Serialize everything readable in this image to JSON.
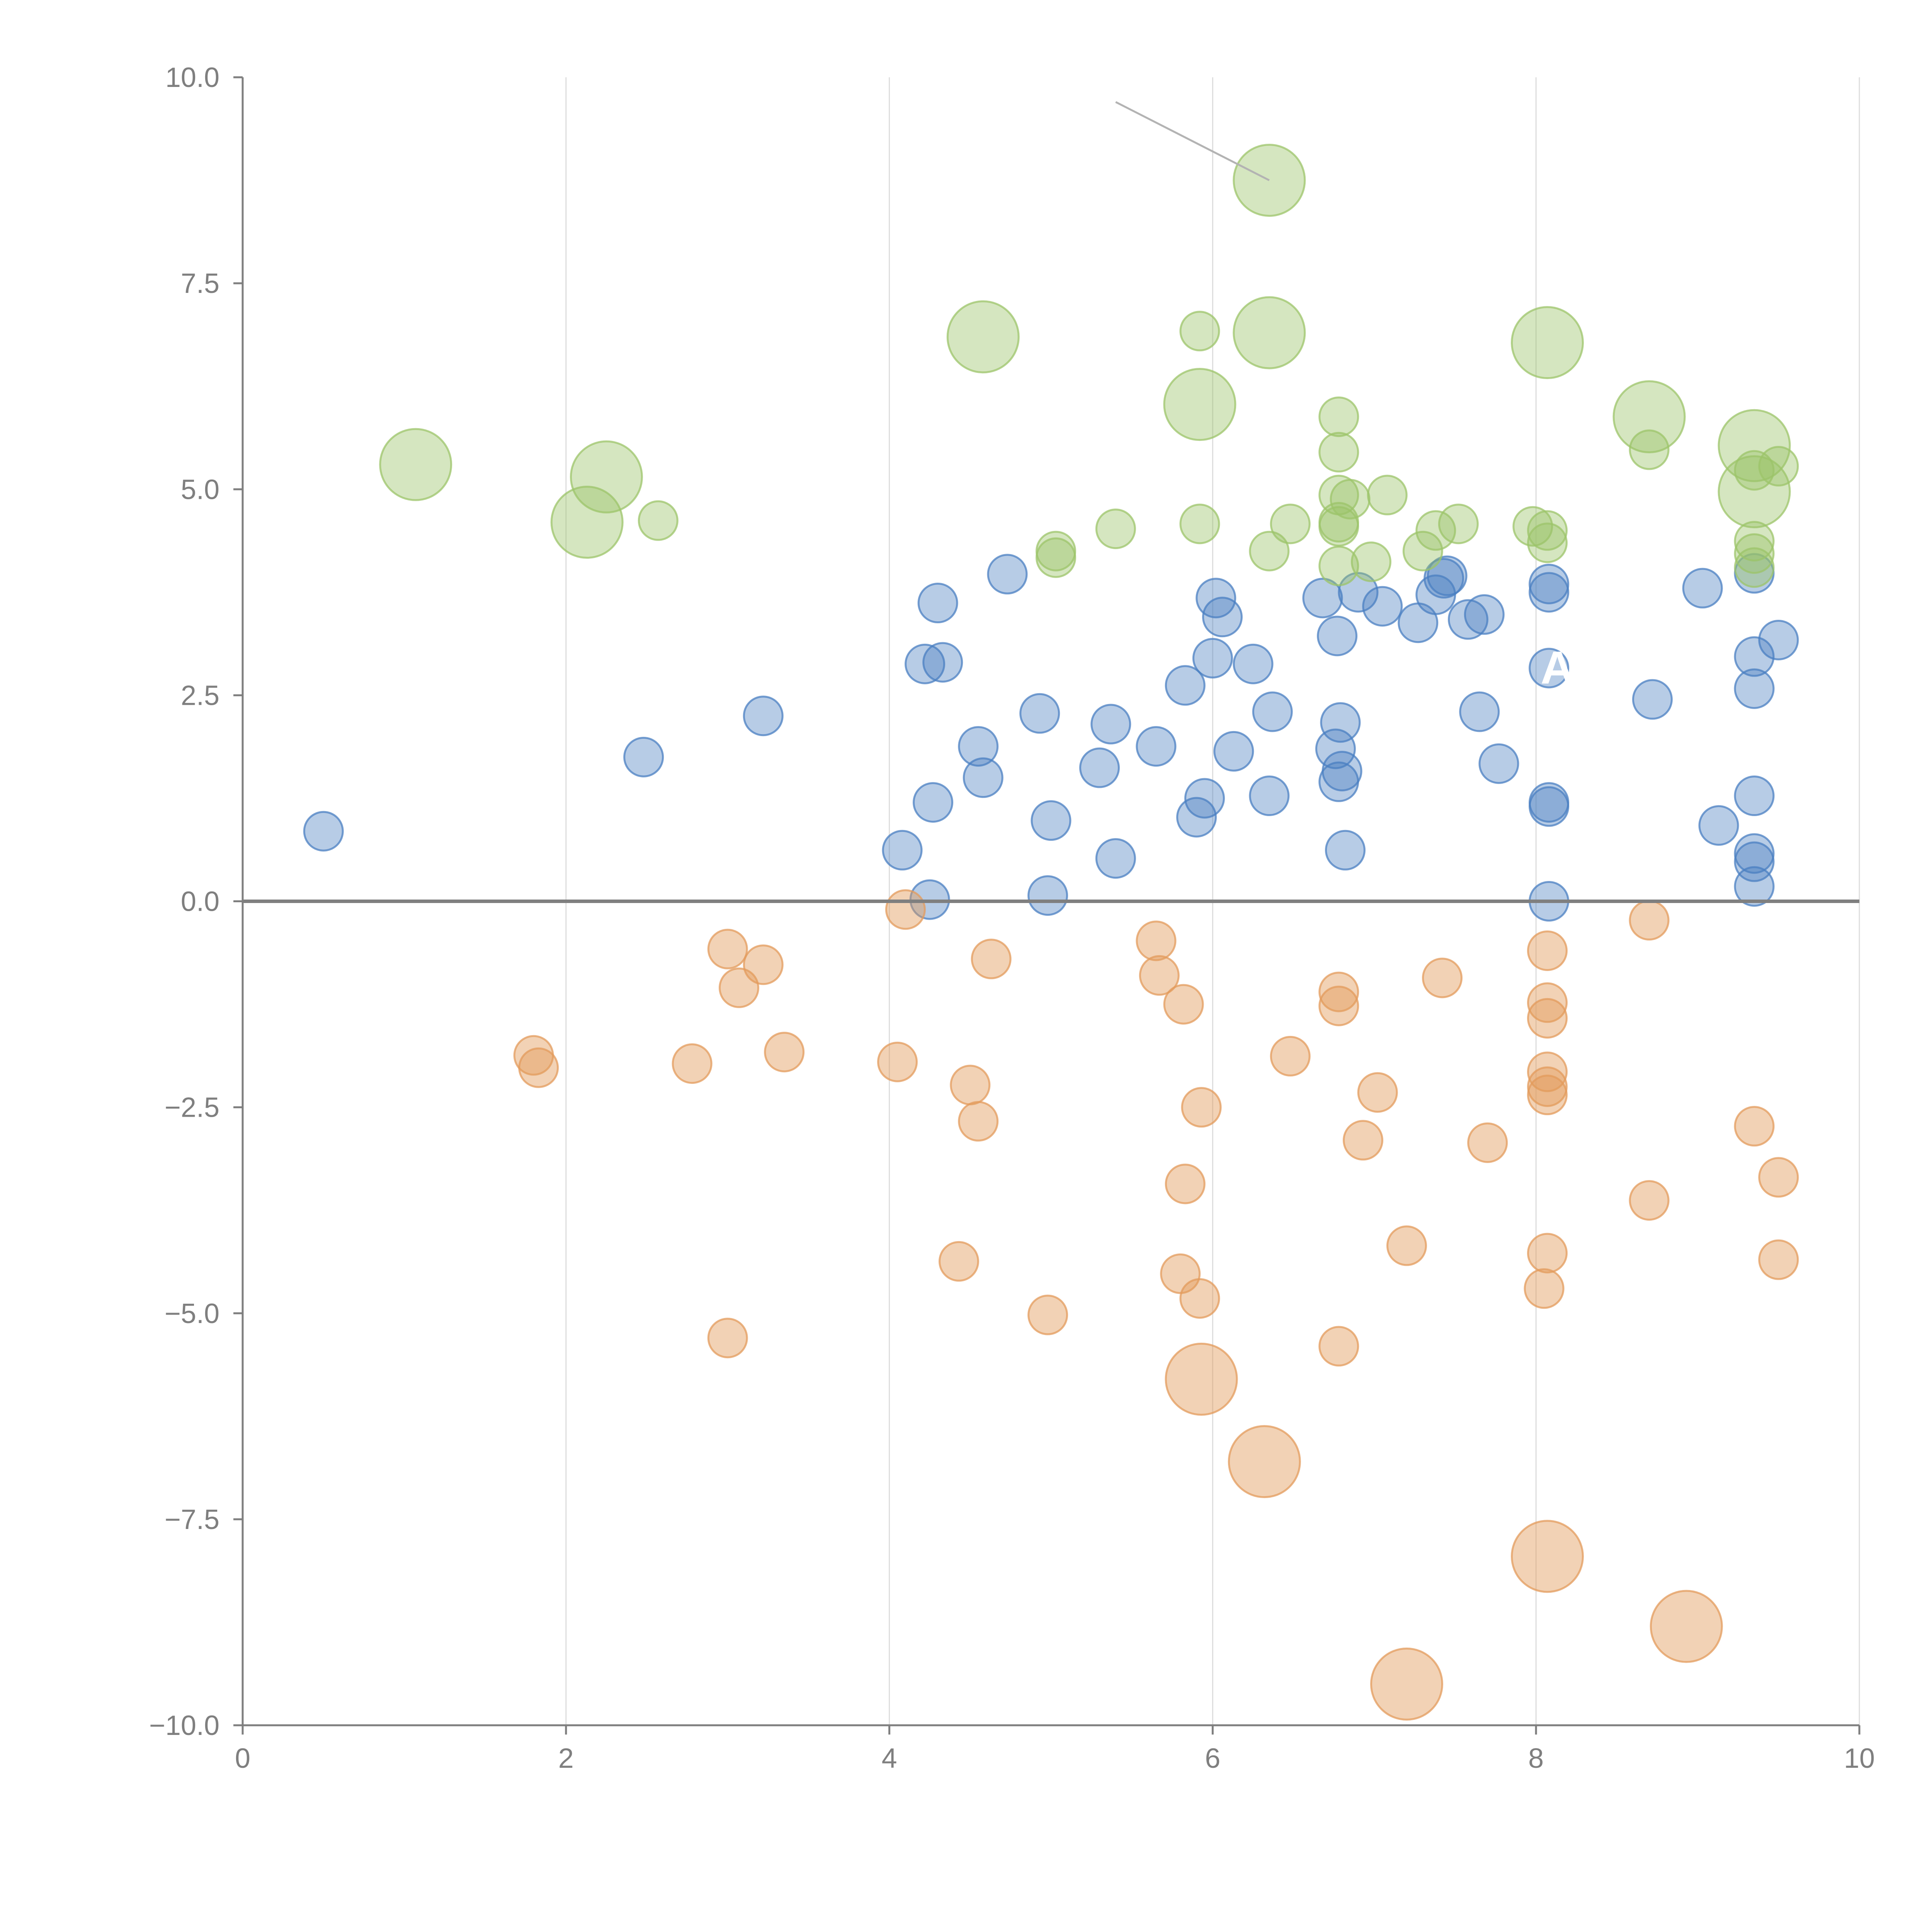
{
  "chart_data": {
    "type": "scatter",
    "title": "",
    "xlabel": "",
    "ylabel": "",
    "xlim": [
      0,
      10
    ],
    "ylim": [
      -10,
      10
    ],
    "grid": "vertical",
    "legend": "none",
    "x_ticks": [
      0,
      2,
      4,
      6,
      8,
      10
    ],
    "x_tick_labels": [
      "0",
      "2",
      "4",
      "6",
      "8",
      "10"
    ],
    "y_ticks": [
      10,
      7.5,
      5,
      2.5,
      0,
      -2.5,
      -5,
      -7.5,
      -10
    ],
    "y_tick_labels": [
      "10.0",
      "7.5",
      "5.0",
      "2.5",
      "0.0",
      "−2.5",
      "−5.0",
      "−7.5",
      "−10.0"
    ],
    "zero_line": 0,
    "annotations": [
      {
        "text": "A",
        "x": 8.1,
        "y": 2.83
      }
    ],
    "leader_lines": [
      {
        "from": [
          5.4,
          9.7
        ],
        "to": [
          6.35,
          8.75
        ]
      }
    ],
    "series": [
      {
        "name": "blue",
        "color": "#4a7fc1",
        "fill_opacity": 0.4,
        "points": [
          [
            0.5,
            0.85,
            1
          ],
          [
            2.48,
            1.75,
            1
          ],
          [
            3.22,
            2.25,
            1
          ],
          [
            4.08,
            0.62,
            1
          ],
          [
            4.22,
            2.88,
            1
          ],
          [
            4.25,
            0.02,
            1
          ],
          [
            4.27,
            1.2,
            1
          ],
          [
            4.3,
            3.62,
            1
          ],
          [
            4.33,
            2.9,
            1
          ],
          [
            4.55,
            1.88,
            1
          ],
          [
            4.58,
            1.5,
            1
          ],
          [
            4.73,
            3.97,
            1
          ],
          [
            4.93,
            2.28,
            1
          ],
          [
            4.98,
            0.07,
            1
          ],
          [
            5.0,
            0.98,
            1
          ],
          [
            5.3,
            1.62,
            1
          ],
          [
            5.37,
            2.15,
            1
          ],
          [
            5.4,
            0.52,
            1
          ],
          [
            5.65,
            1.88,
            1
          ],
          [
            5.83,
            2.62,
            1
          ],
          [
            5.9,
            1.02,
            1
          ],
          [
            5.95,
            1.25,
            1
          ],
          [
            6.0,
            2.95,
            1
          ],
          [
            6.02,
            3.68,
            1
          ],
          [
            6.06,
            3.45,
            1
          ],
          [
            6.13,
            1.82,
            1
          ],
          [
            6.25,
            2.88,
            1
          ],
          [
            6.35,
            1.28,
            1
          ],
          [
            6.37,
            2.3,
            1
          ],
          [
            6.68,
            3.68,
            1
          ],
          [
            6.76,
            1.85,
            1
          ],
          [
            6.77,
            3.22,
            1
          ],
          [
            6.78,
            1.45,
            1
          ],
          [
            6.79,
            2.17,
            1
          ],
          [
            6.8,
            1.58,
            1
          ],
          [
            6.82,
            0.62,
            1
          ],
          [
            6.9,
            3.75,
            1
          ],
          [
            7.05,
            3.58,
            1
          ],
          [
            7.27,
            3.38,
            1
          ],
          [
            7.38,
            3.72,
            1
          ],
          [
            7.43,
            3.92,
            1
          ],
          [
            7.45,
            3.95,
            1
          ],
          [
            7.58,
            3.42,
            1
          ],
          [
            7.65,
            2.3,
            1
          ],
          [
            7.68,
            3.48,
            1
          ],
          [
            7.77,
            1.67,
            1
          ],
          [
            8.08,
            3.75,
            1
          ],
          [
            8.08,
            3.85,
            1
          ],
          [
            8.08,
            1.2,
            1
          ],
          [
            8.08,
            1.15,
            1
          ],
          [
            8.08,
            0.0,
            1
          ],
          [
            8.08,
            2.83,
            1
          ],
          [
            8.72,
            2.45,
            1
          ],
          [
            9.03,
            3.8,
            1
          ],
          [
            9.13,
            0.92,
            1
          ],
          [
            9.35,
            1.28,
            1
          ],
          [
            9.35,
            0.58,
            1
          ],
          [
            9.35,
            0.48,
            1
          ],
          [
            9.35,
            0.18,
            1
          ],
          [
            9.35,
            2.58,
            1
          ],
          [
            9.35,
            2.97,
            1
          ],
          [
            9.35,
            3.98,
            1
          ],
          [
            9.5,
            3.17,
            1
          ]
        ]
      },
      {
        "name": "orange",
        "color": "#e39b5c",
        "fill_opacity": 0.45,
        "points": [
          [
            1.8,
            -1.87,
            1
          ],
          [
            1.83,
            -2.02,
            1
          ],
          [
            2.78,
            -1.97,
            1
          ],
          [
            3.0,
            -0.58,
            1
          ],
          [
            3.0,
            -5.3,
            1
          ],
          [
            3.07,
            -1.05,
            1
          ],
          [
            3.22,
            -0.77,
            1
          ],
          [
            3.35,
            -1.83,
            1
          ],
          [
            4.05,
            -1.95,
            1
          ],
          [
            4.1,
            -0.1,
            1
          ],
          [
            4.43,
            -4.37,
            1
          ],
          [
            4.5,
            -2.23,
            1
          ],
          [
            4.55,
            -2.67,
            1
          ],
          [
            4.63,
            -0.7,
            1
          ],
          [
            4.98,
            -5.02,
            1
          ],
          [
            5.65,
            -0.48,
            1
          ],
          [
            5.67,
            -0.9,
            1
          ],
          [
            5.8,
            -4.52,
            1
          ],
          [
            5.82,
            -1.25,
            1
          ],
          [
            5.83,
            -3.43,
            1
          ],
          [
            5.92,
            -4.82,
            1
          ],
          [
            5.93,
            -2.5,
            1
          ],
          [
            5.93,
            -5.8,
            2.5
          ],
          [
            6.32,
            -6.8,
            2.5
          ],
          [
            6.48,
            -1.88,
            1
          ],
          [
            6.78,
            -1.1,
            1
          ],
          [
            6.78,
            -1.27,
            1
          ],
          [
            6.78,
            -5.4,
            1
          ],
          [
            6.93,
            -2.9,
            1
          ],
          [
            7.02,
            -2.32,
            1
          ],
          [
            7.2,
            -4.18,
            1
          ],
          [
            7.2,
            -9.5,
            2.5
          ],
          [
            7.42,
            -0.93,
            1
          ],
          [
            7.7,
            -2.93,
            1
          ],
          [
            8.07,
            -0.6,
            1
          ],
          [
            8.07,
            -1.23,
            1
          ],
          [
            8.07,
            -1.42,
            1
          ],
          [
            8.07,
            -2.07,
            1
          ],
          [
            8.07,
            -2.25,
            1
          ],
          [
            8.07,
            -2.35,
            1
          ],
          [
            8.07,
            -4.27,
            1
          ],
          [
            8.05,
            -4.7,
            1
          ],
          [
            8.07,
            -7.95,
            2.5
          ],
          [
            8.7,
            -0.23,
            1
          ],
          [
            8.7,
            -3.63,
            1
          ],
          [
            8.93,
            -8.8,
            2.5
          ],
          [
            9.35,
            -2.73,
            1
          ],
          [
            9.5,
            -3.35,
            1
          ],
          [
            9.5,
            -4.35,
            1
          ]
        ]
      },
      {
        "name": "green",
        "color": "#9cc46a",
        "fill_opacity": 0.42,
        "points": [
          [
            1.07,
            5.3,
            2.5
          ],
          [
            2.13,
            4.6,
            2.5
          ],
          [
            2.25,
            5.15,
            2.5
          ],
          [
            2.57,
            4.62,
            1
          ],
          [
            4.58,
            6.85,
            2.5
          ],
          [
            5.03,
            4.25,
            1
          ],
          [
            5.03,
            4.17,
            1
          ],
          [
            5.4,
            4.52,
            1
          ],
          [
            5.92,
            6.92,
            1
          ],
          [
            5.92,
            6.03,
            2.5
          ],
          [
            5.92,
            4.58,
            1
          ],
          [
            6.35,
            8.75,
            2.5
          ],
          [
            6.35,
            6.9,
            2.5
          ],
          [
            6.35,
            4.25,
            1
          ],
          [
            6.48,
            4.58,
            1
          ],
          [
            6.78,
            5.88,
            1
          ],
          [
            6.78,
            5.45,
            1
          ],
          [
            6.78,
            4.93,
            1
          ],
          [
            6.78,
            4.6,
            1
          ],
          [
            6.78,
            4.55,
            1
          ],
          [
            6.78,
            4.07,
            1
          ],
          [
            6.85,
            4.88,
            1
          ],
          [
            6.98,
            4.12,
            1
          ],
          [
            7.08,
            4.93,
            1
          ],
          [
            7.3,
            4.25,
            1
          ],
          [
            7.38,
            4.5,
            1
          ],
          [
            7.52,
            4.58,
            1
          ],
          [
            7.98,
            4.55,
            1
          ],
          [
            8.07,
            4.5,
            1
          ],
          [
            8.07,
            4.35,
            1
          ],
          [
            8.07,
            6.78,
            2.5
          ],
          [
            8.7,
            5.88,
            2.5
          ],
          [
            8.7,
            5.48,
            1
          ],
          [
            9.35,
            5.53,
            2.5
          ],
          [
            9.35,
            4.97,
            2.5
          ],
          [
            9.35,
            4.37,
            1
          ],
          [
            9.35,
            4.22,
            1
          ],
          [
            9.35,
            4.05,
            1
          ],
          [
            9.35,
            5.23,
            1
          ],
          [
            9.5,
            5.28,
            1
          ]
        ]
      }
    ]
  }
}
